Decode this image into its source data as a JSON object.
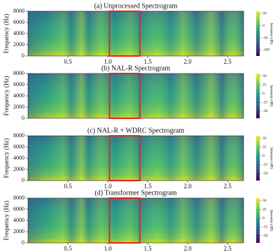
{
  "chart_data": [
    {
      "type": "spectrogram",
      "title": "(a) Unprocessed Spectrogram",
      "ylabel": "Frequency (Hz)",
      "xlim": [
        0,
        2.7
      ],
      "xticks": [
        0.5,
        {
          "value": 1,
          "label": "1.0"
        },
        1.5,
        {
          "value": 2,
          "label": "2.0"
        },
        2.5
      ],
      "ylim": [
        0,
        8000
      ],
      "yticks": [
        0,
        2000,
        4000,
        6000,
        8000
      ],
      "colorbar_label": "Intensity (dB)",
      "clim": [
        -125,
        60
      ],
      "cticks": [
        50,
        0,
        -50,
        -100
      ],
      "highlight": [
        1.02,
        1.4
      ],
      "highlight_color": "#e8231e"
    },
    {
      "type": "spectrogram",
      "title": "(b) NAL-R Spectrogram",
      "ylabel": "Frequency (Hz)",
      "xlim": [
        0,
        2.7
      ],
      "ylim": [
        0,
        8000
      ],
      "yticks": [
        0,
        2000,
        4000,
        6000,
        8000
      ],
      "colorbar_label": "Intensity (dB)",
      "clim": [
        -70,
        57
      ],
      "cticks": [
        50,
        25,
        0,
        -25,
        -50
      ],
      "highlight": [
        1.02,
        1.4
      ],
      "highlight_color": "#e8231e"
    },
    {
      "type": "spectrogram",
      "title": "(c) NAL-R + WDRC Spectrogram",
      "ylabel": "Frequency (Hz)",
      "xlim": [
        0,
        2.7
      ],
      "xticks": [
        0.5,
        {
          "value": 1,
          "label": "1.0"
        },
        1.5,
        {
          "value": 2,
          "label": "2.0"
        },
        2.5
      ],
      "ylim": [
        0,
        8000
      ],
      "yticks": [
        0,
        2000,
        4000,
        6000,
        8000
      ],
      "colorbar_label": "Intensity (dB)",
      "clim": [
        -70,
        57
      ],
      "cticks": [
        50,
        25,
        0,
        -25,
        -50
      ],
      "highlight": [
        1.02,
        1.4
      ],
      "highlight_color": "#e8231e"
    },
    {
      "type": "spectrogram",
      "title": "(d) Transformer Spectrogram",
      "ylabel": "Frequency (Hz)",
      "xlim": [
        0,
        2.7
      ],
      "xticks": [
        0.5,
        {
          "value": 1,
          "label": "1.0"
        },
        1.5,
        {
          "value": 2,
          "label": "2.0"
        },
        2.5
      ],
      "ylim": [
        0,
        8000
      ],
      "yticks": [
        0,
        2000,
        4000,
        6000,
        8000
      ],
      "colorbar_label": "Intensity (dB)",
      "clim": [
        -70,
        57
      ],
      "cticks": [
        50,
        25,
        0,
        -25,
        -50
      ],
      "highlight": [
        1.02,
        1.4
      ],
      "highlight_color": "#e8231e"
    }
  ]
}
